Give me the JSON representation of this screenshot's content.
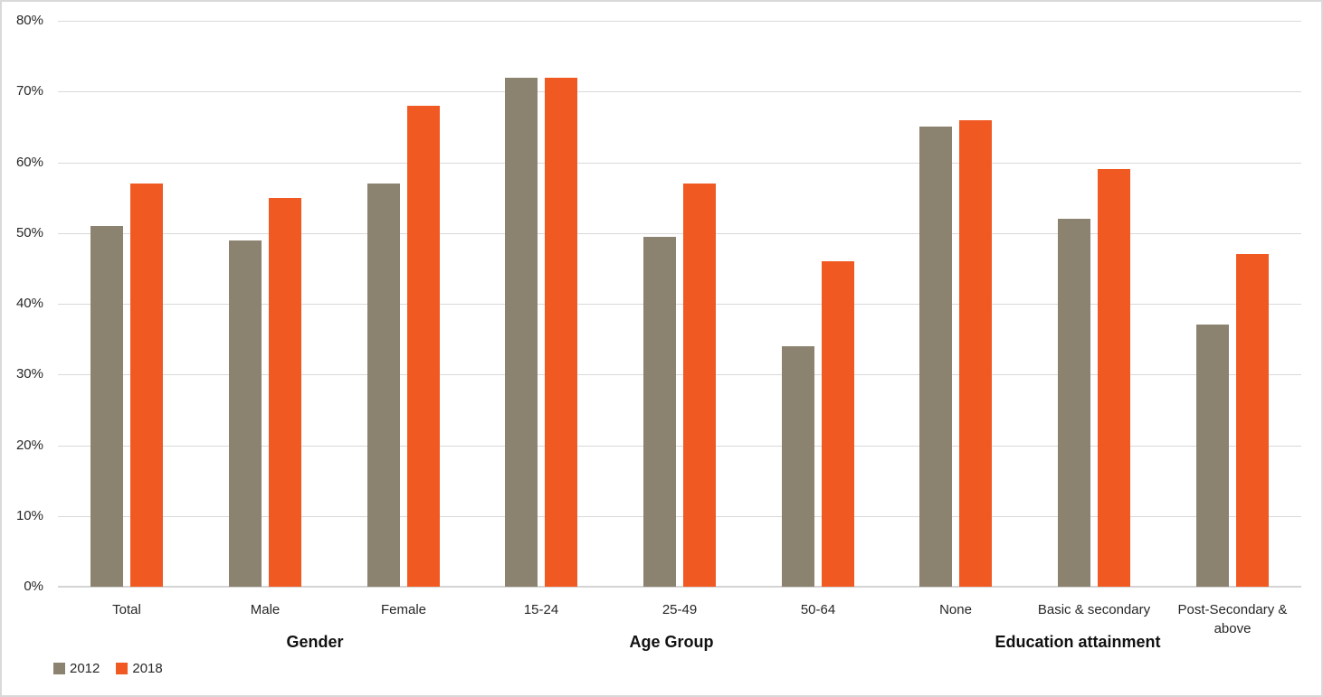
{
  "chart_data": {
    "type": "bar",
    "title": "",
    "categories": [
      "Total",
      "Male",
      "Female",
      "15-24",
      "25-49",
      "50-64",
      "None",
      "Basic & secondary",
      "Post-Secondary & above"
    ],
    "groups": [
      {
        "label": "Gender",
        "span": [
          0,
          2
        ]
      },
      {
        "label": "Age Group",
        "span": [
          3,
          5
        ]
      },
      {
        "label": "Education attainment",
        "span": [
          6,
          8
        ]
      }
    ],
    "series": [
      {
        "name": "2012",
        "color": "#8B8370",
        "values": [
          51,
          49,
          57,
          72,
          49.5,
          34,
          65,
          52,
          37
        ]
      },
      {
        "name": "2018",
        "color": "#F05A22",
        "values": [
          57,
          55,
          68,
          72,
          57,
          46,
          66,
          59,
          47
        ]
      }
    ],
    "ylim": [
      0,
      80
    ],
    "ytick_step": 10,
    "ytick_labels": [
      "0%",
      "10%",
      "20%",
      "30%",
      "40%",
      "50%",
      "60%",
      "70%",
      "80%"
    ],
    "grid": true,
    "legend_position": "bottom-left",
    "colors": {
      "gridline": "#d9d9d9",
      "axis_line": "#d4d4d4",
      "label_text": "#262626"
    }
  }
}
